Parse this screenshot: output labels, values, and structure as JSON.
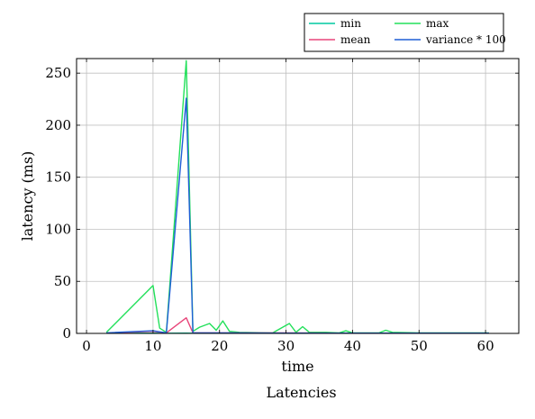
{
  "chart_data": {
    "type": "line",
    "caption": "Latencies",
    "xlabel": "time",
    "ylabel": "latency (ms)",
    "xlim": [
      -1.5,
      65
    ],
    "ylim": [
      0,
      264
    ],
    "xticks": [
      0,
      10,
      20,
      30,
      40,
      50,
      60
    ],
    "yticks": [
      0,
      50,
      100,
      150,
      200,
      250
    ],
    "grid": true,
    "legend": {
      "placement": "top-right, above plot",
      "columns": 2
    },
    "series": [
      {
        "name": "min",
        "color": "#00c8a0",
        "points": [
          [
            3,
            0.2
          ],
          [
            10,
            0.3
          ],
          [
            12,
            0.2
          ],
          [
            15,
            0.3
          ],
          [
            16,
            0.2
          ],
          [
            20,
            0.2
          ],
          [
            30,
            0.2
          ],
          [
            40,
            0.2
          ],
          [
            50,
            0.2
          ],
          [
            60.5,
            0.2
          ]
        ]
      },
      {
        "name": "max",
        "color": "#22e05a",
        "points": [
          [
            3,
            1
          ],
          [
            10,
            46
          ],
          [
            11,
            5
          ],
          [
            12,
            1
          ],
          [
            15,
            262
          ],
          [
            16,
            2
          ],
          [
            17,
            6
          ],
          [
            18.5,
            9.5
          ],
          [
            19.5,
            3
          ],
          [
            20.5,
            12
          ],
          [
            21.5,
            2
          ],
          [
            23,
            1
          ],
          [
            28,
            0.5
          ],
          [
            30.5,
            9.5
          ],
          [
            31.5,
            1
          ],
          [
            32.5,
            6.5
          ],
          [
            33.5,
            1
          ],
          [
            36,
            1
          ],
          [
            38,
            0.5
          ],
          [
            39,
            2.5
          ],
          [
            40,
            0.5
          ],
          [
            44,
            0.5
          ],
          [
            45,
            3
          ],
          [
            46,
            1
          ],
          [
            50,
            0.5
          ],
          [
            55,
            0.5
          ],
          [
            60.5,
            0.5
          ]
        ]
      },
      {
        "name": "mean",
        "color": "#e8457a",
        "points": [
          [
            3,
            0.3
          ],
          [
            10,
            2
          ],
          [
            12,
            0.5
          ],
          [
            15,
            15
          ],
          [
            16,
            0.5
          ],
          [
            20,
            0.5
          ],
          [
            30,
            0.4
          ],
          [
            40,
            0.3
          ],
          [
            50,
            0.3
          ],
          [
            60.5,
            0.3
          ]
        ]
      },
      {
        "name": "variance * 100",
        "color": "#1f5fd6",
        "points": [
          [
            3,
            0.5
          ],
          [
            10,
            2.5
          ],
          [
            12,
            0.5
          ],
          [
            15,
            226
          ],
          [
            16,
            0.5
          ],
          [
            20,
            0.5
          ],
          [
            30,
            0.3
          ],
          [
            40,
            0.3
          ],
          [
            50,
            0.3
          ],
          [
            60.5,
            0.3
          ]
        ]
      }
    ],
    "legend_order": [
      "min",
      "max",
      "mean",
      "variance * 100"
    ]
  }
}
